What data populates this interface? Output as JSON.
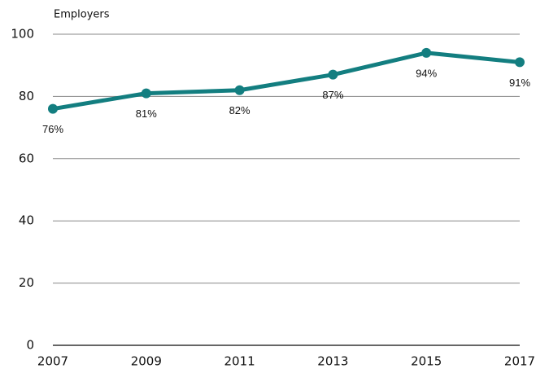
{
  "chart_data": {
    "type": "line",
    "y_label": "Employers",
    "x": [
      2007,
      2009,
      2011,
      2013,
      2015,
      2017
    ],
    "series": [
      {
        "name": "Employers",
        "color": "#137e80",
        "values": [
          76,
          81,
          82,
          87,
          94,
          91
        ],
        "value_labels": [
          "76%",
          "81%",
          "82%",
          "87%",
          "94%",
          "91%"
        ]
      }
    ],
    "xlim": [
      2007,
      2017
    ],
    "xticks": [
      2007,
      2009,
      2011,
      2013,
      2015,
      2017
    ],
    "ylim": [
      0,
      100
    ],
    "yticks": [
      0,
      20,
      40,
      60,
      80,
      100
    ],
    "grid": true
  }
}
